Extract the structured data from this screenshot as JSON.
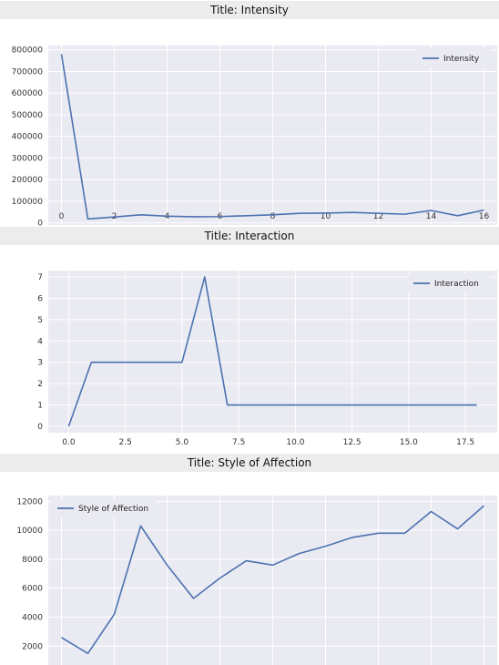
{
  "chart_data": [
    {
      "type": "line",
      "title": "Title: Intensity",
      "xlabel": "",
      "ylabel": "",
      "x": [
        0,
        1,
        2,
        3,
        4,
        5,
        6,
        7,
        8,
        9,
        10,
        11,
        12,
        13,
        14,
        15,
        16
      ],
      "series": [
        {
          "name": "Intensity",
          "values": [
            780000,
            18000,
            27000,
            37000,
            31000,
            28000,
            29000,
            33000,
            37000,
            44000,
            45000,
            48000,
            44000,
            40000,
            57000,
            33000,
            59000
          ]
        }
      ],
      "xlim": [
        -0.5,
        16.5
      ],
      "ylim": [
        -10000,
        820000
      ],
      "xticks": [
        0,
        2,
        4,
        6,
        8,
        10,
        12,
        14,
        16
      ],
      "yticks": [
        0,
        100000,
        200000,
        300000,
        400000,
        500000,
        600000,
        700000,
        800000
      ],
      "xtick_labels": [
        "0",
        "2",
        "4",
        "6",
        "8",
        "10",
        "12",
        "14",
        "16"
      ],
      "ytick_labels": [
        "0",
        "100000",
        "200000",
        "300000",
        "400000",
        "500000",
        "600000",
        "700000",
        "800000"
      ],
      "grid": true,
      "legend": "top-right",
      "color": "#4c72b0"
    },
    {
      "type": "line",
      "title": "Title: Interaction",
      "xlabel": "",
      "ylabel": "",
      "x": [
        0,
        1,
        2,
        3,
        4,
        5,
        6,
        7,
        8,
        9,
        10,
        11,
        12,
        13,
        14,
        15,
        16,
        17,
        18
      ],
      "series": [
        {
          "name": "Interaction",
          "values": [
            0,
            3,
            3,
            3,
            3,
            3,
            7,
            1,
            1,
            1,
            1,
            1,
            1,
            1,
            1,
            1,
            1,
            1,
            1
          ]
        }
      ],
      "xlim": [
        -0.9,
        18.9
      ],
      "ylim": [
        -0.3,
        7.3
      ],
      "xticks": [
        0,
        2.5,
        5,
        7.5,
        10,
        12.5,
        15,
        17.5
      ],
      "yticks": [
        0,
        1,
        2,
        3,
        4,
        5,
        6,
        7
      ],
      "xtick_labels": [
        "0.0",
        "2.5",
        "5.0",
        "7.5",
        "10.0",
        "12.5",
        "15.0",
        "17.5"
      ],
      "ytick_labels": [
        "0",
        "1",
        "2",
        "3",
        "4",
        "5",
        "6",
        "7"
      ],
      "grid": true,
      "legend": "top-right",
      "color": "#4c72b0"
    },
    {
      "type": "line",
      "title": "Title: Style of Affection",
      "xlabel": "",
      "ylabel": "",
      "x": [
        0,
        1,
        2,
        3,
        4,
        5,
        6,
        7,
        8,
        9,
        10,
        11,
        12,
        13,
        14,
        15,
        16
      ],
      "series": [
        {
          "name": "Style of Affection",
          "values": [
            2600,
            1500,
            4200,
            10300,
            7600,
            5300,
            6700,
            7900,
            7600,
            8400,
            8900,
            9500,
            9800,
            9800,
            11300,
            10100,
            11700
          ]
        }
      ],
      "xlim": [
        -0.5,
        16.5
      ],
      "ylim": [
        700,
        12400
      ],
      "xticks": [
        0,
        2,
        4,
        6,
        8,
        10,
        12,
        14,
        16
      ],
      "yticks": [
        2000,
        4000,
        6000,
        8000,
        10000,
        12000
      ],
      "xtick_labels": [],
      "ytick_labels": [
        "2000",
        "4000",
        "6000",
        "8000",
        "10000",
        "12000"
      ],
      "grid": true,
      "legend": "top-left",
      "color": "#4c72b0"
    }
  ]
}
